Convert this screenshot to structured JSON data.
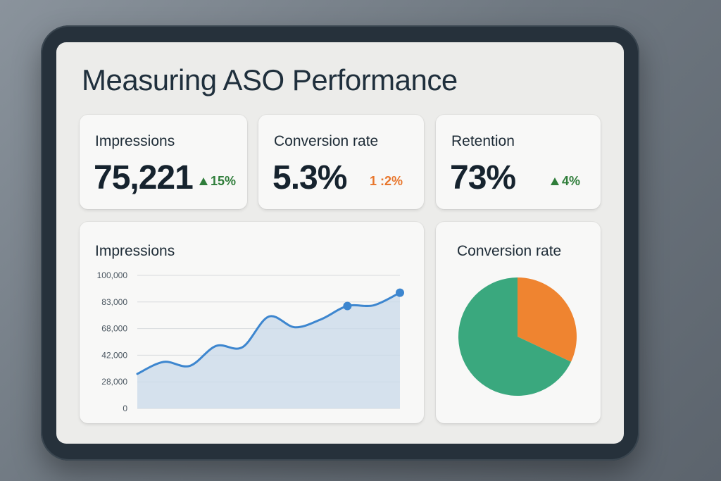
{
  "title": "Measuring ASO Performance",
  "kpis": [
    {
      "label": "Impressions",
      "value": "75,221",
      "delta": "15%",
      "trend": "up"
    },
    {
      "label": "Conversion rate",
      "value": "5.3%",
      "delta": "1 :2%",
      "trend": "down"
    },
    {
      "label": "Retention",
      "value": "73%",
      "delta": "4%",
      "trend": "up"
    }
  ],
  "impressions_chart": {
    "title": "Impressions",
    "y_ticks": [
      "100,000",
      "83,000",
      "68,000",
      "42,000",
      "28,000",
      "0"
    ]
  },
  "conversion_chart": {
    "title": "Conversion rate"
  },
  "colors": {
    "accent_blue": "#3d86cf",
    "area_fill": "#c9d9ea",
    "pie_green": "#3aa87e",
    "pie_orange": "#ef8430",
    "up_green": "#2f7d3a",
    "down_orange": "#e8762c"
  },
  "chart_data": [
    {
      "type": "area",
      "title": "Impressions",
      "ylim": [
        0,
        100000
      ],
      "y_ticks": [
        "100,000",
        "83,000",
        "68,000",
        "42,000",
        "28,000",
        "0"
      ],
      "series": [
        {
          "x": [
            0,
            1,
            2,
            3,
            4,
            5,
            6,
            7,
            8,
            9,
            10
          ],
          "values": [
            26000,
            35000,
            32000,
            47000,
            46000,
            69000,
            61000,
            67000,
            77000,
            77500,
            87000
          ]
        }
      ],
      "highlighted_points": [
        8,
        10
      ]
    },
    {
      "type": "pie",
      "title": "Conversion rate",
      "slices": [
        {
          "value": 68,
          "color": "#3aa87e"
        },
        {
          "value": 32,
          "color": "#ef8430"
        }
      ]
    }
  ]
}
